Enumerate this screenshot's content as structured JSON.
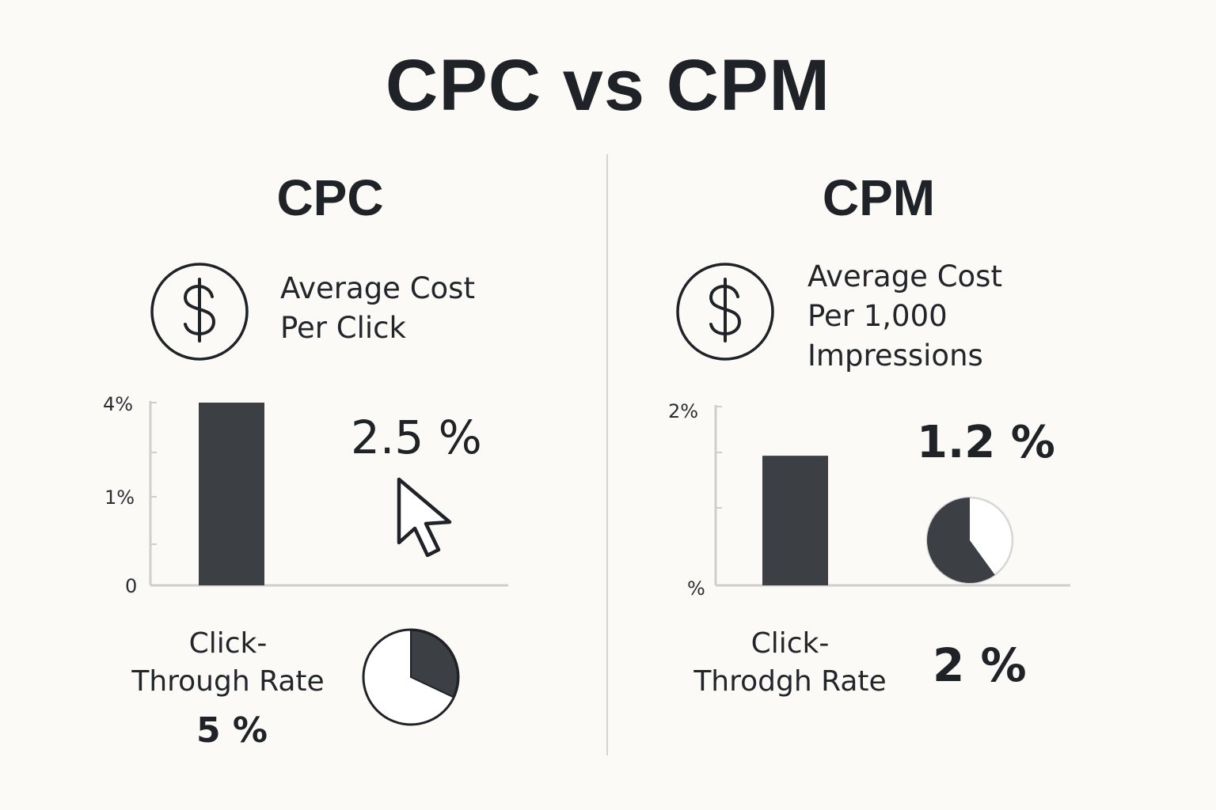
{
  "title": "CPC vs CPM",
  "colors": {
    "bar": "#3c3f44",
    "axis": "#cfcfcf",
    "divider": "#d4d4d4",
    "text": "#1f2226",
    "background": "#fbfaf7"
  },
  "panels": {
    "cpc": {
      "title": "CPC",
      "icon": "dollar-circle-icon",
      "cost_label_lines": [
        "Average Cost",
        "Per Click"
      ],
      "value": "2.5 %",
      "pointer_icon": "cursor-arrow-icon",
      "ctr_label_lines": [
        "Click-",
        "Through Rate"
      ],
      "ctr_value": "5 %"
    },
    "cpm": {
      "title": "CPM",
      "icon": "dollar-circle-icon",
      "cost_label_lines": [
        "Average Cost",
        "Per 1,000",
        "Impressions"
      ],
      "value": "1.2 %",
      "ctr_label_lines": [
        "Click-",
        "Throdgh Rate"
      ],
      "ctr_value": "2 %"
    }
  },
  "chart_data": [
    {
      "type": "bar",
      "panel": "CPC",
      "y_tick_labels": [
        "0",
        "1%",
        "4%"
      ],
      "ylim": [
        0,
        4
      ],
      "values": [
        4
      ]
    },
    {
      "type": "bar",
      "panel": "CPM",
      "y_tick_labels": [
        "%",
        "2%"
      ],
      "ylim": [
        0,
        2
      ],
      "values": [
        1.45
      ]
    },
    {
      "type": "pie",
      "panel": "CPC",
      "slices": [
        {
          "label": "filled",
          "fraction": 0.32,
          "color": "#3c3f44"
        },
        {
          "label": "remaining",
          "fraction": 0.68,
          "color": "#ffffff"
        }
      ]
    },
    {
      "type": "pie",
      "panel": "CPM",
      "slices": [
        {
          "label": "filled",
          "fraction": 0.6,
          "color": "#3c3f44"
        },
        {
          "label": "remaining",
          "fraction": 0.4,
          "color": "#ffffff"
        }
      ]
    }
  ]
}
